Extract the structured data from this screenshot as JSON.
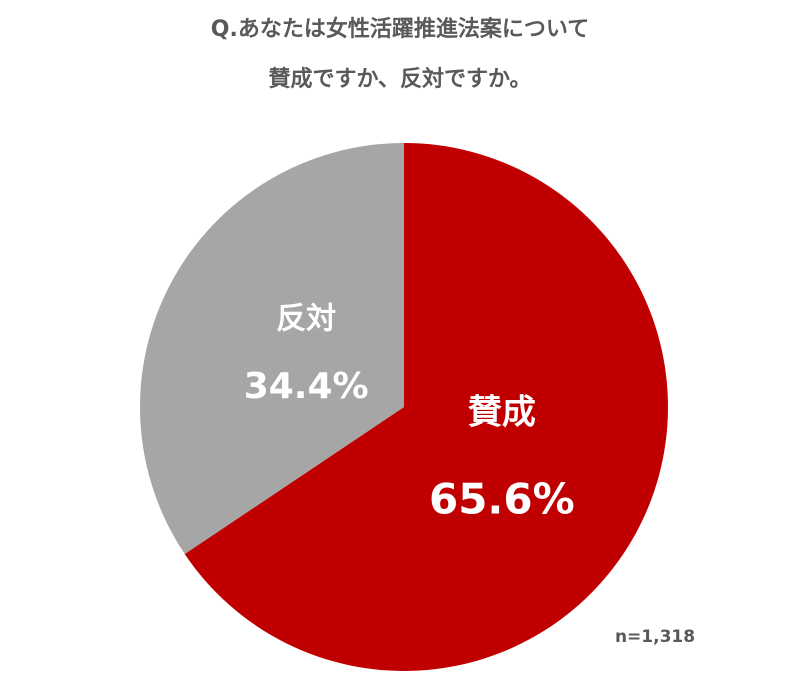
{
  "chart_data": {
    "type": "pie",
    "title": [
      "Q.あなたは女性活躍推進法案について",
      "賛成ですか、反対ですか。"
    ],
    "categories": [
      "賛成",
      "反対"
    ],
    "values": [
      65.6,
      34.4
    ],
    "value_labels": [
      "65.6%",
      "34.4%"
    ],
    "colors": [
      "#c00000",
      "#a6a6a6"
    ],
    "annotation": "n=1,318"
  }
}
